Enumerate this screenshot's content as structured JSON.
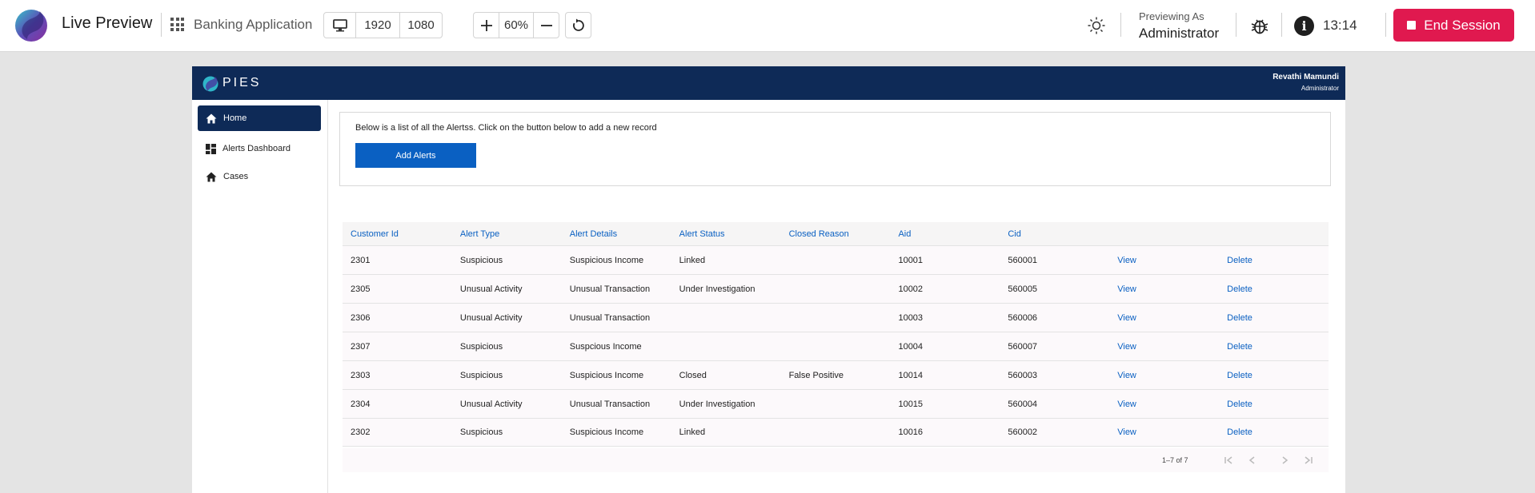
{
  "toolbar": {
    "title": "Live Preview",
    "project": "Banking Application",
    "width": "1920",
    "height": "1080",
    "zoom": "60%",
    "previewing_as_label": "Previewing As",
    "previewing_as_role": "Administrator",
    "time": "13:14",
    "end_session": "End Session",
    "colors": {
      "end_session_bg": "#e0194f"
    }
  },
  "app": {
    "brand": "PIES",
    "user_name": "Revathi Mamundi",
    "user_role": "Administrator",
    "colors": {
      "header_bg": "#0e2a57",
      "primary": "#0a60c2"
    }
  },
  "sidebar": {
    "items": [
      {
        "label": "Home",
        "icon": "home-icon",
        "active": true
      },
      {
        "label": "Alerts Dashboard",
        "icon": "dashboard-icon",
        "active": false
      },
      {
        "label": "Cases",
        "icon": "home-icon",
        "active": false
      }
    ]
  },
  "main": {
    "intro": "Below is a list of all the Alertss. Click on the button below to add a new record",
    "add_button": "Add Alerts"
  },
  "table": {
    "columns": [
      "Customer Id",
      "Alert Type",
      "Alert Details",
      "Alert Status",
      "Closed Reason",
      "Aid",
      "Cid",
      "",
      ""
    ],
    "rows": [
      [
        "2301",
        "Suspicious",
        "Suspicious Income",
        "Linked",
        "",
        "10001",
        "560001",
        "View",
        "Delete"
      ],
      [
        "2305",
        "Unusual Activity",
        "Unusual Transaction",
        "Under Investigation",
        "",
        "10002",
        "560005",
        "View",
        "Delete"
      ],
      [
        "2306",
        "Unusual Activity",
        "Unusual Transaction",
        "",
        "",
        "10003",
        "560006",
        "View",
        "Delete"
      ],
      [
        "2307",
        "Suspicious",
        "Suspcious Income",
        "",
        "",
        "10004",
        "560007",
        "View",
        "Delete"
      ],
      [
        "2303",
        "Suspicious",
        "Suspicious Income",
        "Closed",
        "False Positive",
        "10014",
        "560003",
        "View",
        "Delete"
      ],
      [
        "2304",
        "Unusual Activity",
        "Unusual Transaction",
        "Under Investigation",
        "",
        "10015",
        "560004",
        "View",
        "Delete"
      ],
      [
        "2302",
        "Suspicious",
        "Suspicious Income",
        "Linked",
        "",
        "10016",
        "560002",
        "View",
        "Delete"
      ]
    ],
    "range": "1–7 of 7"
  }
}
